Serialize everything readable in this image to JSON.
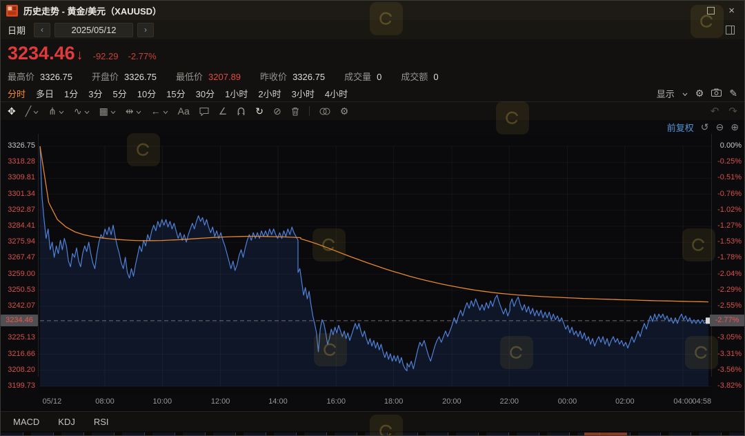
{
  "window": {
    "title": "历史走势 - 黄金/美元（XAUUSD）",
    "close_label": "×"
  },
  "date_bar": {
    "label": "日期",
    "prev": "‹",
    "value": "2025/05/12",
    "next": "›"
  },
  "quote": {
    "price": "3234.46",
    "arrow": "↓",
    "change": "-92.29",
    "change_pct": "-2.77%",
    "stats": [
      {
        "label": "最高价",
        "value": "3326.75",
        "emph": false
      },
      {
        "label": "开盘价",
        "value": "3326.75",
        "emph": false
      },
      {
        "label": "最低价",
        "value": "3207.89",
        "emph": true
      },
      {
        "label": "昨收价",
        "value": "3326.75",
        "emph": false
      },
      {
        "label": "成交量",
        "value": "0",
        "emph": false
      },
      {
        "label": "成交额",
        "value": "0",
        "emph": false
      }
    ]
  },
  "period_tabs": {
    "items": [
      "分时",
      "多日",
      "1分",
      "3分",
      "5分",
      "10分",
      "15分",
      "30分",
      "1小时",
      "2小时",
      "3小时",
      "4小时"
    ],
    "active_index": 0,
    "display_label": "显示"
  },
  "toolbar": {
    "items": [
      {
        "name": "move-tool",
        "glyph": "✥",
        "bright": true
      },
      {
        "name": "trendline-tool",
        "glyph": "╱",
        "dropdown": true
      },
      {
        "name": "pitchfork-tool",
        "glyph": "⋔",
        "dropdown": true
      },
      {
        "name": "wave-tool",
        "glyph": "∿",
        "dropdown": true
      },
      {
        "name": "pattern-tool",
        "glyph": "▦",
        "dropdown": true
      },
      {
        "name": "measure-tool",
        "glyph": "⇹",
        "dropdown": true
      },
      {
        "name": "arrow-tool",
        "glyph": "←",
        "dropdown": true
      },
      {
        "name": "text-tool",
        "glyph": "Aa"
      },
      {
        "name": "comment-tool",
        "svg": "comment"
      },
      {
        "name": "angle-tool",
        "glyph": "∠"
      },
      {
        "name": "magnet-tool",
        "svg": "magnet"
      },
      {
        "name": "continuous-draw-tool",
        "glyph": "↻",
        "bright": true
      },
      {
        "name": "hide-drawings-tool",
        "glyph": "⊘"
      },
      {
        "name": "delete-drawings-tool",
        "svg": "trash"
      },
      {
        "name": "divider",
        "divider": true
      },
      {
        "name": "compare-tool",
        "svg": "compare"
      },
      {
        "name": "drawing-settings",
        "glyph": "⚙"
      }
    ],
    "undo": "↶",
    "redo": "↷"
  },
  "chart_header": {
    "adjust_label": "前复权",
    "reset": "↺",
    "zoom_out": "⊖",
    "zoom_in": "⊕"
  },
  "indicator_tabs": [
    "MACD",
    "KDJ",
    "RSI"
  ],
  "colors": {
    "down_red": "#e13a3a",
    "axis_red": "#d8504a",
    "accent_orange": "#f28a2c",
    "line_blue": "#4f82d9",
    "ma_orange": "#e8872b",
    "link_blue": "#4f94d4"
  },
  "chart_data": {
    "type": "line",
    "title": "黄金/美元（XAUUSD）分时走势 2025/05/12",
    "prev_close": 3326.75,
    "open": 3326.75,
    "high": 3326.75,
    "low": 3207.89,
    "last": 3234.46,
    "change": -92.29,
    "change_pct": -2.77,
    "axis_max": 3326.75,
    "axis_min": 3199.73,
    "axis_rows": 16,
    "y_axis_left": [
      "3326.75",
      "3318.28",
      "3309.81",
      "3301.34",
      "3292.87",
      "3284.41",
      "3275.94",
      "3267.47",
      "3259.00",
      "3250.53",
      "3242.07",
      "3225.13",
      "3216.66",
      "3208.20",
      "3199.73"
    ],
    "y_axis_right": [
      "0.00%",
      "-0.25%",
      "-0.51%",
      "-0.76%",
      "-1.02%",
      "-1.27%",
      "-1.53%",
      "-1.78%",
      "-2.04%",
      "-2.29%",
      "-2.55%",
      "-3.05%",
      "-3.31%",
      "-3.56%",
      "-3.82%"
    ],
    "badge_left": "3234.46",
    "badge_right": "-2.77%",
    "x_ticks": [
      {
        "label": "05/12",
        "pos": 0.018,
        "grid": false
      },
      {
        "label": "08:00",
        "pos": 0.097,
        "grid": true
      },
      {
        "label": "10:00",
        "pos": 0.183,
        "grid": true
      },
      {
        "label": "12:00",
        "pos": 0.27,
        "grid": true
      },
      {
        "label": "14:00",
        "pos": 0.356,
        "grid": true
      },
      {
        "label": "16:00",
        "pos": 0.443,
        "grid": true
      },
      {
        "label": "18:00",
        "pos": 0.529,
        "grid": true
      },
      {
        "label": "20:00",
        "pos": 0.616,
        "grid": true
      },
      {
        "label": "22:00",
        "pos": 0.702,
        "grid": true
      },
      {
        "label": "00:00",
        "pos": 0.789,
        "grid": true
      },
      {
        "label": "02:00",
        "pos": 0.875,
        "grid": true
      },
      {
        "label": "04:00",
        "pos": 0.962,
        "grid": true
      },
      {
        "label": "04:58",
        "pos": 0.99,
        "grid": false
      }
    ],
    "series": [
      {
        "name": "价格",
        "color": "#4f82d9",
        "fill": "rgba(45,90,180,0.16)",
        "segments": [
          {
            "from": 0.0,
            "to": 0.386,
            "values": [
              3326.75,
              3300,
              3288,
              3278,
              3283,
              3272,
              3276,
              3268,
              3274,
              3270,
              3277,
              3272,
              3278,
              3274,
              3266,
              3263,
              3270,
              3268,
              3273,
              3266,
              3263,
              3270,
              3274,
              3271,
              3276,
              3270,
              3265,
              3262,
              3270,
              3276,
              3280,
              3278,
              3283,
              3280,
              3284,
              3280,
              3285,
              3279,
              3274,
              3270,
              3265,
              3262,
              3268,
              3260,
              3257,
              3262,
              3258,
              3264,
              3269,
              3274,
              3271,
              3277,
              3274,
              3280,
              3277,
              3282,
              3285,
              3282,
              3287,
              3284,
              3288,
              3285,
              3288,
              3284,
              3287,
              3283,
              3286,
              3282,
              3278,
              3281,
              3277,
              3280,
              3276,
              3280,
              3283,
              3286,
              3283,
              3287,
              3290,
              3287,
              3289,
              3285,
              3288,
              3284,
              3281,
              3284,
              3279,
              3282,
              3278,
              3281,
              3277,
              3274,
              3270,
              3266,
              3262,
              3266,
              3261,
              3264,
              3269,
              3272,
              3268,
              3273,
              3277,
              3280,
              3277,
              3281,
              3278,
              3281,
              3278,
              3282,
              3279,
              3282,
              3279,
              3283,
              3280,
              3283,
              3280,
              3278,
              3281,
              3278,
              3282,
              3279,
              3283,
              3280,
              3284,
              3281,
              3279,
              3277
            ]
          },
          {
            "from": 0.386,
            "to": 0.549,
            "values": [
              3260,
              3262,
              3255,
              3248,
              3252,
              3246,
              3250,
              3243,
              3237,
              3233,
              3228,
              3218,
              3230,
              3235,
              3233,
              3228,
              3222,
              3225,
              3230,
              3227,
              3231,
              3228,
              3232,
              3229,
              3226,
              3229,
              3225,
              3228,
              3224,
              3227,
              3230,
              3233,
              3230,
              3233,
              3229,
              3226,
              3229,
              3225,
              3222,
              3225,
              3221,
              3224,
              3220,
              3223,
              3219,
              3222,
              3218,
              3215,
              3218,
              3214,
              3217,
              3213,
              3216,
              3213,
              3216,
              3212,
              3215,
              3211,
              3209,
              3207.89
            ]
          },
          {
            "from": 0.549,
            "to": 0.703,
            "values": [
              3212,
              3210,
              3213,
              3209,
              3214,
              3219,
              3223,
              3221,
              3224,
              3220,
              3216,
              3213,
              3217,
              3221,
              3224,
              3226,
              3223,
              3226,
              3229,
              3226,
              3229,
              3232,
              3236,
              3233,
              3237,
              3240,
              3237,
              3241,
              3244,
              3241,
              3245,
              3242,
              3246,
              3243,
              3240,
              3243,
              3240,
              3244,
              3241,
              3245,
              3242,
              3246,
              3248,
              3244,
              3241,
              3238,
              3241,
              3237,
              3240
            ]
          },
          {
            "from": 0.703,
            "to": 1.0,
            "values": [
              3243,
              3246,
              3242,
              3245,
              3247,
              3243,
              3240,
              3243,
              3239,
              3242,
              3238,
              3241,
              3237,
              3240,
              3237,
              3240,
              3236,
              3239,
              3236,
              3239,
              3235,
              3238,
              3235,
              3237,
              3234,
              3236,
              3233,
              3230,
              3232,
              3228,
              3231,
              3227,
              3229,
              3226,
              3229,
              3225,
              3228,
              3224,
              3226,
              3222,
              3225,
              3221,
              3224,
              3226,
              3223,
              3226,
              3222,
              3225,
              3221,
              3224,
              3226,
              3223,
              3225,
              3222,
              3224,
              3221,
              3223,
              3220,
              3223,
              3226,
              3223,
              3226,
              3229,
              3226,
              3230,
              3233,
              3230,
              3234,
              3237,
              3234,
              3238,
              3235,
              3238,
              3236,
              3238,
              3235,
              3237,
              3234,
              3236,
              3233,
              3236,
              3233,
              3236,
              3238,
              3235,
              3237,
              3234,
              3236,
              3233,
              3235,
              3233,
              3235,
              3233,
              3235,
              3233,
              3234,
              3234.46
            ]
          }
        ]
      },
      {
        "name": "均价",
        "color": "#e8872b",
        "segments": [
          {
            "from": 0.0,
            "to": 0.39,
            "values": [
              3326.75,
              3297,
              3288,
              3284,
              3281.5,
              3280,
              3279,
              3278.3,
              3277.8,
              3277.4,
              3277.1,
              3276.9,
              3276.8,
              3276.8,
              3276.9,
              3277.1,
              3277.3,
              3277.6,
              3277.9,
              3278.2,
              3278.5,
              3278.7,
              3278.9,
              3279,
              3279.1,
              3279.1,
              3279,
              3278.9,
              3278.8,
              3278.6,
              3278.4
            ]
          },
          {
            "from": 0.39,
            "to": 1.0,
            "values": [
              3277.8,
              3276.5,
              3275,
              3273.4,
              3271.7,
              3270,
              3268.3,
              3266.7,
              3265.1,
              3263.6,
              3262.1,
              3260.7,
              3259.4,
              3258.1,
              3256.9,
              3255.8,
              3254.8,
              3253.8,
              3252.9,
              3252.1,
              3251.3,
              3250.6,
              3250,
              3249.4,
              3248.9,
              3248.5,
              3248.1,
              3247.8,
              3247.5,
              3247.2,
              3247,
              3246.8,
              3246.6,
              3246.4,
              3246.2,
              3246.1,
              3245.9,
              3245.8,
              3245.6,
              3245.5,
              3245.4,
              3245.2,
              3245.1,
              3245,
              3244.9,
              3244.8,
              3244.7,
              3244.6,
              3244.5,
              3244.4
            ]
          }
        ]
      }
    ],
    "current_price_line": 3234.46,
    "grid": true,
    "legend_position": "none"
  }
}
